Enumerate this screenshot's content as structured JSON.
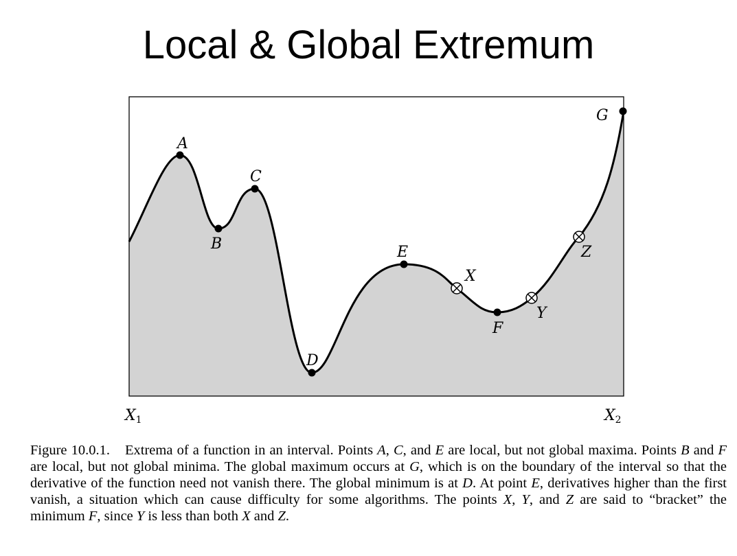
{
  "title": "Local & Global Extremum",
  "colors": {
    "fill": "#d3d3d3",
    "curve": "#000000",
    "frame": "#000000"
  },
  "figure": {
    "points": {
      "A": "A",
      "B": "B",
      "C": "C",
      "D": "D",
      "E": "E",
      "F": "F",
      "G": "G",
      "X": "X",
      "Y": "Y",
      "Z": "Z"
    },
    "x_labels": {
      "left_var": "X",
      "left_sub": "1",
      "right_var": "X",
      "right_sub": "2"
    }
  },
  "caption": {
    "figure_number": "Figure 10.0.1.",
    "parts": [
      "Extrema of a function in an interval.  Points ",
      "A",
      ", ",
      "C",
      ", and ",
      "E",
      " are local, but not global maxima.  Points ",
      "B",
      " and ",
      "F",
      " are local, but not global minima.  The global maximum occurs at ",
      "G",
      ", which is on the boundary of the interval so that the derivative of the function need not vanish there.  The global minimum is at ",
      "D",
      ".  At point ",
      "E",
      ", derivatives higher than the first vanish, a situation which can cause difficulty for some algorithms.  The points ",
      "X",
      ", ",
      "Y",
      ", and ",
      "Z",
      " are said to “bracket” the minimum ",
      "F",
      ", since ",
      "Y",
      " is less than both ",
      "X",
      " and ",
      "Z",
      "."
    ]
  }
}
